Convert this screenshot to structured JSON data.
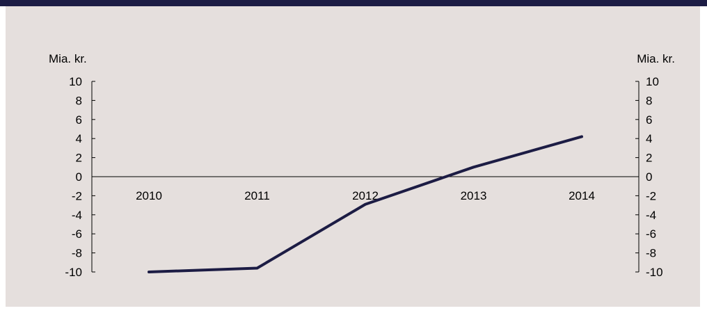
{
  "colors": {
    "top_bar": "#1c1c44",
    "panel_background": "#e5dfdd",
    "line": "#1c1c44",
    "axis": "#000000"
  },
  "chart_data": {
    "type": "line",
    "title": "",
    "xlabel": "",
    "ylabel_left": "Mia. kr.",
    "ylabel_right": "Mia. kr.",
    "categories": [
      "2010",
      "2011",
      "2012",
      "2013",
      "2014"
    ],
    "series": [
      {
        "values": [
          -10.0,
          -9.6,
          -2.9,
          1.0,
          4.2
        ]
      }
    ],
    "ylim": [
      -10,
      10
    ],
    "yticks": [
      10,
      8,
      6,
      4,
      2,
      0,
      -2,
      -4,
      -6,
      -8,
      -10
    ],
    "ytick_labels": [
      "10",
      "8",
      "6",
      "4",
      "2",
      "0",
      "-2",
      "-4",
      "-6",
      "-8",
      "-10"
    ],
    "grid": false,
    "legend": "none"
  }
}
